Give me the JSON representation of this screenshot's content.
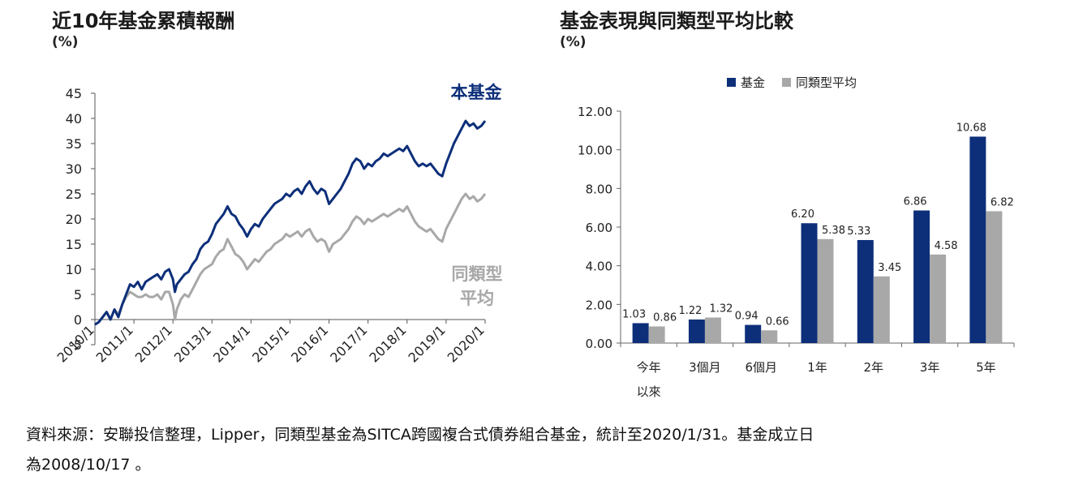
{
  "chart_data": [
    {
      "type": "line",
      "title": "近10年基金累積報酬",
      "ylabel": "(%)",
      "ylim": [
        -5,
        45
      ],
      "yticks": [
        "45",
        "40",
        "35",
        "30",
        "25",
        "20",
        "15",
        "10",
        "5",
        "0",
        "-5"
      ],
      "xticks": [
        "2010/1",
        "2011/1",
        "2012/1",
        "2013/1",
        "2014/1",
        "2015/1",
        "2016/1",
        "2017/1",
        "2018/1",
        "2019/1",
        "2020/1"
      ],
      "series": [
        {
          "name": "本基金",
          "color": "#0d2f7a",
          "points": [
            [
              2010.0,
              -1
            ],
            [
              2010.1,
              -0.5
            ],
            [
              2010.2,
              0.5
            ],
            [
              2010.3,
              1.5
            ],
            [
              2010.4,
              0
            ],
            [
              2010.5,
              2
            ],
            [
              2010.6,
              0.5
            ],
            [
              2010.7,
              3
            ],
            [
              2010.8,
              5
            ],
            [
              2010.9,
              7
            ],
            [
              2011.0,
              6.5
            ],
            [
              2011.1,
              7.5
            ],
            [
              2011.2,
              6
            ],
            [
              2011.3,
              7.5
            ],
            [
              2011.4,
              8
            ],
            [
              2011.5,
              8.5
            ],
            [
              2011.6,
              9
            ],
            [
              2011.7,
              8
            ],
            [
              2011.8,
              9.5
            ],
            [
              2011.9,
              10
            ],
            [
              2012.0,
              8
            ],
            [
              2012.05,
              5.5
            ],
            [
              2012.1,
              7
            ],
            [
              2012.2,
              8
            ],
            [
              2012.3,
              9
            ],
            [
              2012.4,
              9.5
            ],
            [
              2012.5,
              11
            ],
            [
              2012.6,
              12
            ],
            [
              2012.7,
              14
            ],
            [
              2012.8,
              15
            ],
            [
              2012.9,
              15.5
            ],
            [
              2013.0,
              17
            ],
            [
              2013.1,
              19
            ],
            [
              2013.2,
              20
            ],
            [
              2013.3,
              21
            ],
            [
              2013.4,
              22.5
            ],
            [
              2013.5,
              21
            ],
            [
              2013.6,
              20.5
            ],
            [
              2013.7,
              19
            ],
            [
              2013.8,
              18
            ],
            [
              2013.9,
              16.5
            ],
            [
              2014.0,
              18
            ],
            [
              2014.1,
              19
            ],
            [
              2014.2,
              18.5
            ],
            [
              2014.3,
              20
            ],
            [
              2014.4,
              21
            ],
            [
              2014.5,
              22
            ],
            [
              2014.6,
              23
            ],
            [
              2014.7,
              23.5
            ],
            [
              2014.8,
              24
            ],
            [
              2014.9,
              25
            ],
            [
              2015.0,
              24.5
            ],
            [
              2015.1,
              25.5
            ],
            [
              2015.2,
              26
            ],
            [
              2015.3,
              25
            ],
            [
              2015.4,
              26.5
            ],
            [
              2015.5,
              27.5
            ],
            [
              2015.6,
              26
            ],
            [
              2015.7,
              25
            ],
            [
              2015.8,
              26
            ],
            [
              2015.9,
              25.5
            ],
            [
              2016.0,
              23
            ],
            [
              2016.1,
              24
            ],
            [
              2016.2,
              25
            ],
            [
              2016.3,
              26
            ],
            [
              2016.4,
              27.5
            ],
            [
              2016.5,
              29
            ],
            [
              2016.6,
              31
            ],
            [
              2016.7,
              32
            ],
            [
              2016.8,
              31.5
            ],
            [
              2016.9,
              30
            ],
            [
              2017.0,
              31
            ],
            [
              2017.1,
              30.5
            ],
            [
              2017.2,
              31.5
            ],
            [
              2017.3,
              32
            ],
            [
              2017.4,
              33
            ],
            [
              2017.5,
              32.5
            ],
            [
              2017.6,
              33
            ],
            [
              2017.7,
              33.5
            ],
            [
              2017.8,
              34
            ],
            [
              2017.9,
              33.5
            ],
            [
              2018.0,
              34.5
            ],
            [
              2018.1,
              33
            ],
            [
              2018.2,
              31.5
            ],
            [
              2018.3,
              30.5
            ],
            [
              2018.4,
              31
            ],
            [
              2018.5,
              30.5
            ],
            [
              2018.6,
              31
            ],
            [
              2018.7,
              30
            ],
            [
              2018.8,
              29
            ],
            [
              2018.9,
              28.5
            ],
            [
              2019.0,
              31
            ],
            [
              2019.1,
              33
            ],
            [
              2019.2,
              35
            ],
            [
              2019.3,
              36.5
            ],
            [
              2019.4,
              38
            ],
            [
              2019.5,
              39.5
            ],
            [
              2019.6,
              38.5
            ],
            [
              2019.7,
              39
            ],
            [
              2019.8,
              38
            ],
            [
              2019.9,
              38.5
            ],
            [
              2020.0,
              39.5
            ]
          ]
        },
        {
          "name": "同類型平均",
          "color": "#a8a8a8",
          "points": [
            [
              2010.0,
              -1
            ],
            [
              2010.1,
              -0.5
            ],
            [
              2010.2,
              0.5
            ],
            [
              2010.3,
              1.5
            ],
            [
              2010.4,
              0
            ],
            [
              2010.5,
              2
            ],
            [
              2010.6,
              1
            ],
            [
              2010.7,
              3
            ],
            [
              2010.8,
              4.5
            ],
            [
              2010.9,
              5.5
            ],
            [
              2011.0,
              5
            ],
            [
              2011.1,
              4.5
            ],
            [
              2011.2,
              4.5
            ],
            [
              2011.3,
              5
            ],
            [
              2011.4,
              4.5
            ],
            [
              2011.5,
              4.5
            ],
            [
              2011.6,
              5
            ],
            [
              2011.7,
              4
            ],
            [
              2011.8,
              5.5
            ],
            [
              2011.9,
              5.5
            ],
            [
              2012.0,
              3
            ],
            [
              2012.05,
              0
            ],
            [
              2012.1,
              2
            ],
            [
              2012.2,
              4
            ],
            [
              2012.3,
              5
            ],
            [
              2012.4,
              4.5
            ],
            [
              2012.5,
              6
            ],
            [
              2012.6,
              7.5
            ],
            [
              2012.7,
              9
            ],
            [
              2012.8,
              10
            ],
            [
              2012.9,
              10.5
            ],
            [
              2013.0,
              11
            ],
            [
              2013.1,
              12.5
            ],
            [
              2013.2,
              13.5
            ],
            [
              2013.3,
              14
            ],
            [
              2013.4,
              16
            ],
            [
              2013.5,
              14.5
            ],
            [
              2013.6,
              13
            ],
            [
              2013.7,
              12.5
            ],
            [
              2013.8,
              11.5
            ],
            [
              2013.9,
              10
            ],
            [
              2014.0,
              11
            ],
            [
              2014.1,
              12
            ],
            [
              2014.2,
              11.5
            ],
            [
              2014.3,
              12.5
            ],
            [
              2014.4,
              13.5
            ],
            [
              2014.5,
              14
            ],
            [
              2014.6,
              15
            ],
            [
              2014.7,
              15.5
            ],
            [
              2014.8,
              16
            ],
            [
              2014.9,
              17
            ],
            [
              2015.0,
              16.5
            ],
            [
              2015.1,
              17
            ],
            [
              2015.2,
              17.5
            ],
            [
              2015.3,
              16.5
            ],
            [
              2015.4,
              17.5
            ],
            [
              2015.5,
              18
            ],
            [
              2015.6,
              16.5
            ],
            [
              2015.7,
              15.5
            ],
            [
              2015.8,
              16
            ],
            [
              2015.9,
              15.5
            ],
            [
              2016.0,
              13.5
            ],
            [
              2016.1,
              15
            ],
            [
              2016.2,
              15.5
            ],
            [
              2016.3,
              16
            ],
            [
              2016.4,
              17
            ],
            [
              2016.5,
              18
            ],
            [
              2016.6,
              19.5
            ],
            [
              2016.7,
              20.5
            ],
            [
              2016.8,
              20
            ],
            [
              2016.9,
              19
            ],
            [
              2017.0,
              20
            ],
            [
              2017.1,
              19.5
            ],
            [
              2017.2,
              20
            ],
            [
              2017.3,
              20.5
            ],
            [
              2017.4,
              21
            ],
            [
              2017.5,
              20.5
            ],
            [
              2017.6,
              21
            ],
            [
              2017.7,
              21.5
            ],
            [
              2017.8,
              22
            ],
            [
              2017.9,
              21.5
            ],
            [
              2018.0,
              22.5
            ],
            [
              2018.1,
              21
            ],
            [
              2018.2,
              19.5
            ],
            [
              2018.3,
              18.5
            ],
            [
              2018.4,
              18
            ],
            [
              2018.5,
              17.5
            ],
            [
              2018.6,
              18
            ],
            [
              2018.7,
              17
            ],
            [
              2018.8,
              16
            ],
            [
              2018.9,
              15.5
            ],
            [
              2019.0,
              18
            ],
            [
              2019.1,
              19.5
            ],
            [
              2019.2,
              21
            ],
            [
              2019.3,
              22.5
            ],
            [
              2019.4,
              24
            ],
            [
              2019.5,
              25
            ],
            [
              2019.6,
              24
            ],
            [
              2019.7,
              24.5
            ],
            [
              2019.8,
              23.5
            ],
            [
              2019.9,
              24
            ],
            [
              2020.0,
              25
            ]
          ]
        }
      ],
      "annotations": {
        "fund_label": "本基金",
        "peer_label_line1": "同類型",
        "peer_label_line2": "平均"
      }
    },
    {
      "type": "bar",
      "title": "基金表現與同類型平均比較",
      "ylabel": "(%)",
      "ylim": [
        0,
        12
      ],
      "yticks": [
        "12.00",
        "10.00",
        "8.00",
        "6.00",
        "4.00",
        "2.00",
        "0.00"
      ],
      "categories": [
        [
          "今年",
          "以來"
        ],
        [
          "3個月"
        ],
        [
          "6個月"
        ],
        [
          "1年"
        ],
        [
          "2年"
        ],
        [
          "3年"
        ],
        [
          "5年"
        ]
      ],
      "legend": "top",
      "series": [
        {
          "name": "基金",
          "color": "#0d2f7a",
          "values": [
            1.03,
            1.22,
            0.94,
            6.2,
            5.33,
            6.86,
            10.68
          ],
          "labels": [
            "1.03",
            "1.22",
            "0.94",
            "6.20",
            "5.33",
            "6.86",
            "10.68"
          ]
        },
        {
          "name": "同類型平均",
          "color": "#a8a8a8",
          "values": [
            0.86,
            1.32,
            0.66,
            5.38,
            3.45,
            4.58,
            6.82
          ],
          "labels": [
            "0.86",
            "1.32",
            "0.66",
            "5.38",
            "3.45",
            "4.58",
            "6.82"
          ]
        }
      ]
    }
  ],
  "footnote": {
    "line1": "資料來源：安聯投信整理，Lipper，同類型基金為SITCA跨國複合式債券組合基金，統計至2020/1/31。基金成立日",
    "line2": "為2008/10/17 。"
  }
}
